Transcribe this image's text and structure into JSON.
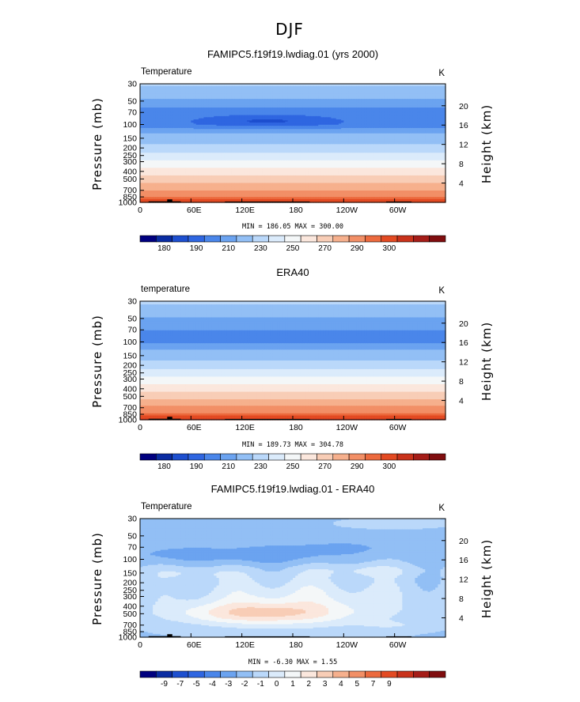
{
  "title": "DJF",
  "cmap_levels": [
    "#00007f",
    "#0a2ca2",
    "#1d4fcf",
    "#2f66e1",
    "#4a86ea",
    "#6ba3f0",
    "#92bff5",
    "#bad8fa",
    "#dbebfb",
    "#f4f7f8",
    "#fbe7dd",
    "#f8cdb6",
    "#f6b08d",
    "#f28f66",
    "#ec6a3e",
    "#e34a22",
    "#c9321b",
    "#a51d18",
    "#800d0f"
  ],
  "x_tick_labels": [
    "0",
    "60E",
    "120E",
    "180",
    "120W",
    "60W"
  ],
  "x_tick_lons": [
    0,
    60,
    120,
    180,
    240,
    300
  ],
  "p_levels": [
    30,
    50,
    70,
    100,
    150,
    200,
    250,
    300,
    400,
    500,
    700,
    850,
    1000
  ],
  "height_ticks": [
    4,
    8,
    12,
    16,
    20
  ],
  "chart_data": [
    {
      "type": "heatmap",
      "name": "model",
      "title": "FAMIPC5.f19f19.lwdiag.01 (yrs 2000)",
      "variable_label": "Temperature",
      "units": "K",
      "xlabel": "",
      "ylabel": "Pressure (mb)",
      "ylabel_right": "Height (km)",
      "xlim": [
        0,
        360
      ],
      "ylim": [
        1000,
        30
      ],
      "min_max_text": "MIN = 186.05  MAX = 300.00",
      "colorbar_labels": [
        "180",
        "190",
        "210",
        "230",
        "250",
        "270",
        "290",
        "300"
      ],
      "colorbar_label_boxes": [
        1,
        3,
        5,
        7,
        9,
        11,
        13,
        15
      ],
      "profile": [
        [
          30,
          211
        ],
        [
          40,
          206
        ],
        [
          50,
          198
        ],
        [
          70,
          193
        ],
        [
          100,
          192
        ],
        [
          150,
          204
        ],
        [
          200,
          214
        ],
        [
          250,
          224
        ],
        [
          300,
          232
        ],
        [
          400,
          244
        ],
        [
          500,
          254
        ],
        [
          700,
          270
        ],
        [
          850,
          280
        ],
        [
          1000,
          290
        ]
      ],
      "cold_core": {
        "lon_min": 70,
        "lon_max": 230,
        "p": 90,
        "delta": -8
      }
    },
    {
      "type": "heatmap",
      "name": "obs",
      "title": "ERA40",
      "variable_label": "temperature",
      "units": "K",
      "xlabel": "",
      "ylabel": "Pressure (mb)",
      "ylabel_right": "Height (km)",
      "xlim": [
        0,
        360
      ],
      "ylim": [
        1000,
        30
      ],
      "min_max_text": "MIN = 189.73  MAX = 304.78",
      "colorbar_labels": [
        "180",
        "190",
        "210",
        "230",
        "250",
        "270",
        "290",
        "300"
      ],
      "colorbar_label_boxes": [
        1,
        3,
        5,
        7,
        9,
        11,
        13,
        15
      ],
      "profile": [
        [
          30,
          212
        ],
        [
          40,
          206
        ],
        [
          50,
          199
        ],
        [
          70,
          195
        ],
        [
          100,
          194
        ],
        [
          150,
          205
        ],
        [
          200,
          215
        ],
        [
          250,
          225
        ],
        [
          300,
          233
        ],
        [
          400,
          246
        ],
        [
          500,
          256
        ],
        [
          700,
          272
        ],
        [
          850,
          282
        ],
        [
          1000,
          292
        ]
      ]
    },
    {
      "type": "heatmap",
      "name": "difference",
      "title": "FAMIPC5.f19f19.lwdiag.01 - ERA40",
      "variable_label": "Temperature",
      "units": "K",
      "xlabel": "",
      "ylabel": "Pressure (mb)",
      "ylabel_right": "Height (km)",
      "xlim": [
        0,
        360
      ],
      "ylim": [
        1000,
        30
      ],
      "min_max_text": "MIN =  -6.30  MAX =   1.55",
      "colorbar_labels": [
        "-9",
        "-7",
        "-5",
        "-4",
        "-3",
        "-2",
        "-1",
        "0",
        "1",
        "2",
        "3",
        "4",
        "5",
        "7",
        "9"
      ],
      "colorbar_label_boxes": [
        1,
        2,
        3,
        4,
        5,
        6,
        7,
        8,
        9,
        10,
        11,
        12,
        13,
        14,
        15
      ],
      "levels": [
        -10,
        -9,
        -8,
        -7,
        -6,
        -5,
        -4,
        -3,
        -2,
        -1,
        0,
        1,
        2,
        3,
        4,
        5,
        6,
        7,
        8,
        10
      ]
    }
  ]
}
